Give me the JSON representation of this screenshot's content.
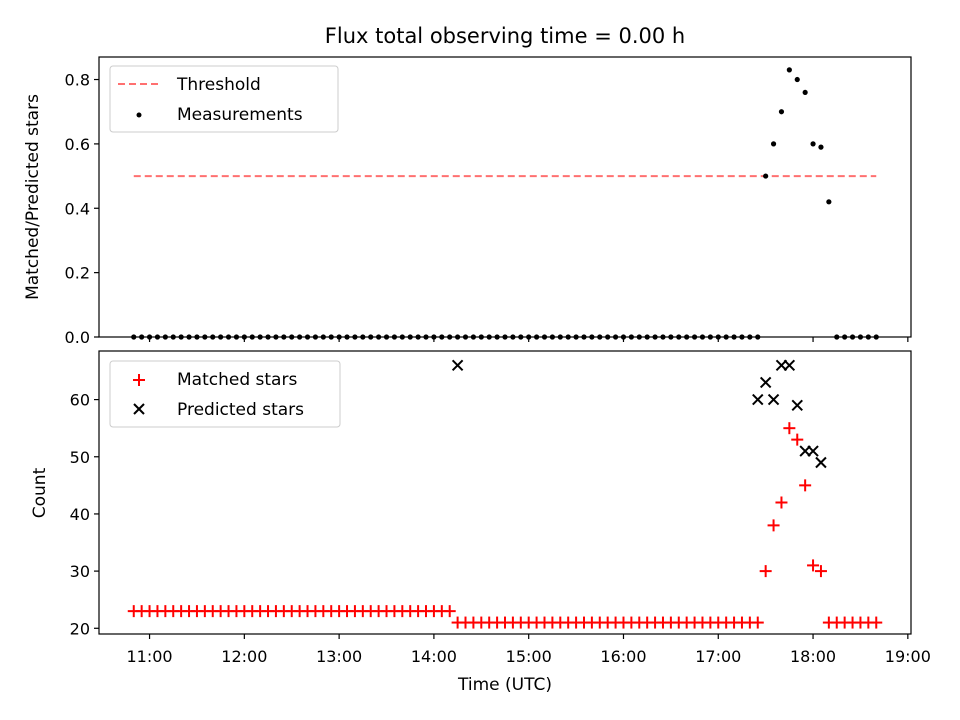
{
  "chart_data": [
    {
      "type": "scatter",
      "title": "Flux total observing time = 0.00 h",
      "xlabel": "",
      "ylabel": "Matched/Predicted stars",
      "xlim": [
        "10:28",
        "19:02"
      ],
      "ylim": [
        0,
        0.87
      ],
      "yticks": [
        "0.0",
        "0.2",
        "0.4",
        "0.6",
        "0.8"
      ],
      "xticks": [
        "11:00",
        "12:00",
        "13:00",
        "14:00",
        "15:00",
        "16:00",
        "17:00",
        "18:00",
        "19:00"
      ],
      "grid": false,
      "legend": "top-left",
      "series": [
        {
          "name": "Threshold",
          "kind": "line",
          "color": "#ff7070",
          "x": [
            "10:50",
            "18:40"
          ],
          "y": [
            0.5,
            0.5
          ]
        },
        {
          "name": "Measurements",
          "kind": "points",
          "color": "#000000",
          "x": [
            "10:50",
            "10:55",
            "11:00",
            "11:05",
            "11:10",
            "11:15",
            "11:20",
            "11:25",
            "11:30",
            "11:35",
            "11:40",
            "11:45",
            "11:50",
            "11:55",
            "12:00",
            "12:05",
            "12:10",
            "12:15",
            "12:20",
            "12:25",
            "12:30",
            "12:35",
            "12:40",
            "12:45",
            "12:50",
            "12:55",
            "13:00",
            "13:05",
            "13:10",
            "13:15",
            "13:20",
            "13:25",
            "13:30",
            "13:35",
            "13:40",
            "13:45",
            "13:50",
            "13:55",
            "14:00",
            "14:05",
            "14:10",
            "14:15",
            "14:20",
            "14:25",
            "14:30",
            "14:35",
            "14:40",
            "14:45",
            "14:50",
            "14:55",
            "15:00",
            "15:05",
            "15:10",
            "15:15",
            "15:20",
            "15:25",
            "15:30",
            "15:35",
            "15:40",
            "15:45",
            "15:50",
            "15:55",
            "16:00",
            "16:05",
            "16:10",
            "16:15",
            "16:20",
            "16:25",
            "16:30",
            "16:35",
            "16:40",
            "16:45",
            "16:50",
            "16:55",
            "17:00",
            "17:05",
            "17:10",
            "17:15",
            "17:20",
            "17:25",
            "17:30",
            "17:35",
            "17:40",
            "17:45",
            "17:50",
            "17:55",
            "18:00",
            "18:05",
            "18:10",
            "18:15",
            "18:20",
            "18:25",
            "18:30",
            "18:35",
            "18:40"
          ],
          "y": [
            0,
            0,
            0,
            0,
            0,
            0,
            0,
            0,
            0,
            0,
            0,
            0,
            0,
            0,
            0,
            0,
            0,
            0,
            0,
            0,
            0,
            0,
            0,
            0,
            0,
            0,
            0,
            0,
            0,
            0,
            0,
            0,
            0,
            0,
            0,
            0,
            0,
            0,
            0,
            0,
            0,
            0,
            0,
            0,
            0,
            0,
            0,
            0,
            0,
            0,
            0,
            0,
            0,
            0,
            0,
            0,
            0,
            0,
            0,
            0,
            0,
            0,
            0,
            0,
            0,
            0,
            0,
            0,
            0,
            0,
            0,
            0,
            0,
            0,
            0,
            0,
            0,
            0,
            0,
            0,
            0.5,
            0.6,
            0.7,
            0.83,
            0.8,
            0.76,
            0.6,
            0.59,
            0.42,
            0,
            0,
            0,
            0,
            0,
            0
          ]
        }
      ]
    },
    {
      "type": "scatter",
      "title": "",
      "xlabel": "Time (UTC)",
      "ylabel": "Count",
      "xlim": [
        "10:28",
        "19:02"
      ],
      "ylim": [
        19,
        68.5
      ],
      "yticks": [
        "20",
        "30",
        "40",
        "50",
        "60"
      ],
      "xticks": [
        "11:00",
        "12:00",
        "13:00",
        "14:00",
        "15:00",
        "16:00",
        "17:00",
        "18:00",
        "19:00"
      ],
      "grid": false,
      "legend": "top-left",
      "series": [
        {
          "name": "Matched stars",
          "kind": "plus",
          "color": "#ff0000",
          "x": [
            "10:50",
            "10:55",
            "11:00",
            "11:05",
            "11:10",
            "11:15",
            "11:20",
            "11:25",
            "11:30",
            "11:35",
            "11:40",
            "11:45",
            "11:50",
            "11:55",
            "12:00",
            "12:05",
            "12:10",
            "12:15",
            "12:20",
            "12:25",
            "12:30",
            "12:35",
            "12:40",
            "12:45",
            "12:50",
            "12:55",
            "13:00",
            "13:05",
            "13:10",
            "13:15",
            "13:20",
            "13:25",
            "13:30",
            "13:35",
            "13:40",
            "13:45",
            "13:50",
            "13:55",
            "14:00",
            "14:05",
            "14:10",
            "14:15",
            "14:20",
            "14:25",
            "14:30",
            "14:35",
            "14:40",
            "14:45",
            "14:50",
            "14:55",
            "15:00",
            "15:05",
            "15:10",
            "15:15",
            "15:20",
            "15:25",
            "15:30",
            "15:35",
            "15:40",
            "15:45",
            "15:50",
            "15:55",
            "16:00",
            "16:05",
            "16:10",
            "16:15",
            "16:20",
            "16:25",
            "16:30",
            "16:35",
            "16:40",
            "16:45",
            "16:50",
            "16:55",
            "17:00",
            "17:05",
            "17:10",
            "17:15",
            "17:20",
            "17:25",
            "17:30",
            "17:35",
            "17:40",
            "17:45",
            "17:50",
            "17:55",
            "18:00",
            "18:05",
            "18:10",
            "18:15",
            "18:20",
            "18:25",
            "18:30",
            "18:35",
            "18:40"
          ],
          "y": [
            23,
            23,
            23,
            23,
            23,
            23,
            23,
            23,
            23,
            23,
            23,
            23,
            23,
            23,
            23,
            23,
            23,
            23,
            23,
            23,
            23,
            23,
            23,
            23,
            23,
            23,
            23,
            23,
            23,
            23,
            23,
            23,
            23,
            23,
            23,
            23,
            23,
            23,
            23,
            23,
            23,
            21,
            21,
            21,
            21,
            21,
            21,
            21,
            21,
            21,
            21,
            21,
            21,
            21,
            21,
            21,
            21,
            21,
            21,
            21,
            21,
            21,
            21,
            21,
            21,
            21,
            21,
            21,
            21,
            21,
            21,
            21,
            21,
            21,
            21,
            21,
            21,
            21,
            21,
            21,
            30,
            38,
            42,
            55,
            53,
            45,
            31,
            30,
            21,
            21,
            21,
            21,
            21,
            21,
            21
          ]
        },
        {
          "name": "Predicted stars",
          "kind": "x",
          "color": "#000000",
          "x": [
            "14:15",
            "17:25",
            "17:30",
            "17:35",
            "17:40",
            "17:45",
            "17:50",
            "17:55",
            "18:00",
            "18:05"
          ],
          "y": [
            66,
            60,
            63,
            60,
            66,
            66,
            59,
            51,
            51,
            49
          ]
        }
      ]
    }
  ]
}
